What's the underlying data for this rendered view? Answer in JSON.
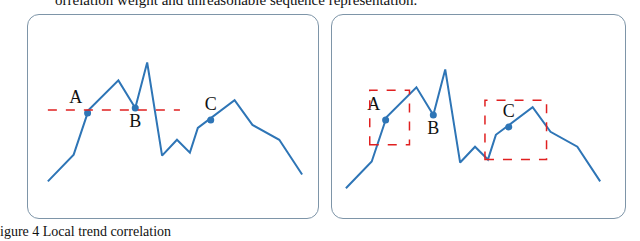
{
  "header": "orrelation weight and unreasonable sequence representation.",
  "caption": "igure 4 Local trend correlation",
  "chart_data": [
    {
      "type": "line",
      "color": "#2e75b6",
      "tick_labels": false,
      "x": [
        0,
        26,
        41,
        71,
        88,
        100,
        115,
        130,
        143,
        151,
        188,
        206,
        233,
        256
      ],
      "values": [
        18,
        45,
        90,
        120,
        92,
        138,
        44,
        60,
        47,
        72,
        100,
        75,
        60,
        25
      ],
      "xlim": [
        -20,
        272
      ],
      "ylim": [
        -19,
        186
      ],
      "points": [
        {
          "label": "A",
          "x": 40,
          "y": 87
        },
        {
          "label": "B",
          "x": 88,
          "y": 92
        },
        {
          "label": "C",
          "x": 164,
          "y": 80
        }
      ],
      "reference_line": {
        "x": [
          0,
          133
        ],
        "y": 90,
        "color": "#e02020",
        "line_style": "dash"
      }
    },
    {
      "type": "line",
      "color": "#2e75b6",
      "tick_labels": false,
      "x": [
        0,
        26,
        41,
        71,
        88,
        100,
        115,
        130,
        143,
        151,
        188,
        206,
        233,
        256
      ],
      "values": [
        18,
        45,
        90,
        120,
        92,
        138,
        44,
        60,
        47,
        72,
        100,
        75,
        60,
        25
      ],
      "xlim": [
        -14,
        281
      ],
      "ylim": [
        -12,
        193
      ],
      "points": [
        {
          "label": "A",
          "x": 40,
          "y": 87
        },
        {
          "label": "B",
          "x": 88,
          "y": 92
        },
        {
          "label": "C",
          "x": 164,
          "y": 80
        }
      ],
      "boxes": [
        {
          "x": [
            24,
            64
          ],
          "y": [
            62,
            117
          ],
          "color": "#e02020",
          "line_style": "dash"
        },
        {
          "x": [
            140,
            202
          ],
          "y": [
            47,
            107
          ],
          "color": "#e02020",
          "line_style": "dash"
        }
      ]
    }
  ]
}
